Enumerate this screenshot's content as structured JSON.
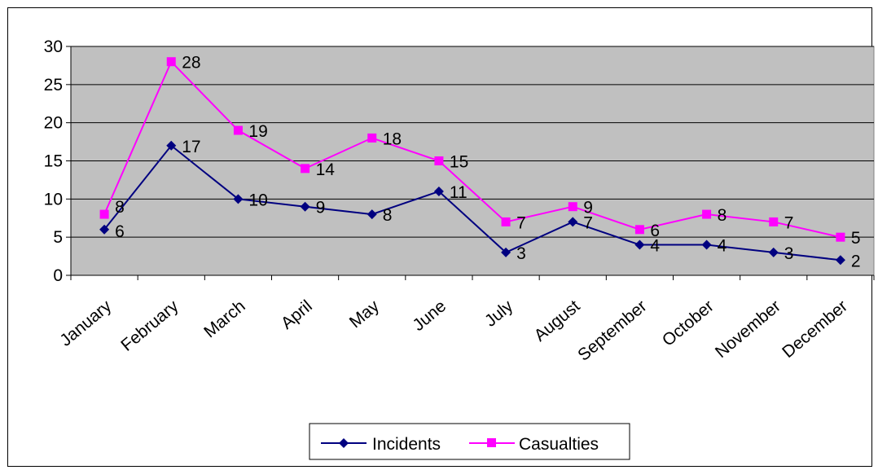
{
  "chart_data": {
    "type": "line",
    "title": "",
    "xlabel": "",
    "ylabel": "",
    "categories": [
      "January",
      "February",
      "March",
      "April",
      "May",
      "June",
      "July",
      "August",
      "September",
      "October",
      "November",
      "December"
    ],
    "ylim": [
      0,
      30
    ],
    "yticks": [
      0,
      5,
      10,
      15,
      20,
      25,
      30
    ],
    "grid": "horizontal",
    "plot_background": "#c0c0c0",
    "legend_position": "bottom",
    "data_labels": true,
    "series": [
      {
        "name": "Incidents",
        "values": [
          6,
          17,
          10,
          9,
          8,
          11,
          3,
          7,
          4,
          4,
          3,
          2
        ],
        "color": "#000080",
        "marker": "diamond"
      },
      {
        "name": "Casualties",
        "values": [
          8,
          28,
          19,
          14,
          18,
          15,
          7,
          9,
          6,
          8,
          7,
          5
        ],
        "color": "#ff00ff",
        "marker": "square"
      }
    ]
  }
}
